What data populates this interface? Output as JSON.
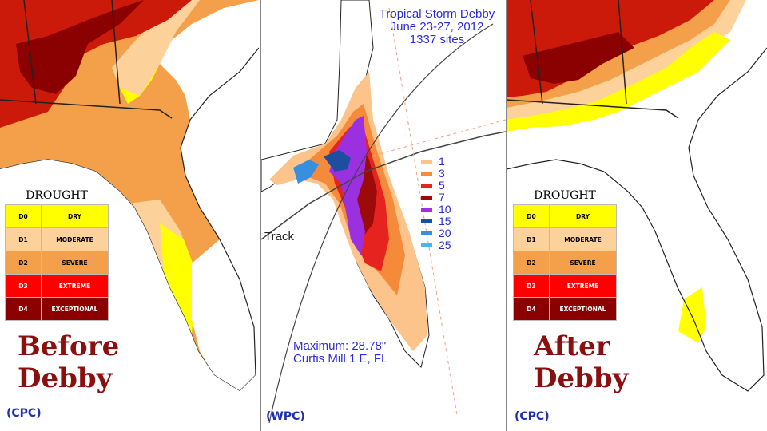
{
  "legend": {
    "title": "DROUGHT",
    "rows": [
      {
        "code": "D0",
        "label": "DRY",
        "color": "#ffff00"
      },
      {
        "code": "D1",
        "label": "MODERATE",
        "color": "#fcd19a"
      },
      {
        "code": "D2",
        "label": "SEVERE",
        "color": "#f4a04a"
      },
      {
        "code": "D3",
        "label": "EXTREME",
        "color": "#ff0000"
      },
      {
        "code": "D4",
        "label": "EXCEPTIONAL",
        "color": "#8b0000"
      }
    ]
  },
  "left_panel": {
    "label_line1": "Before",
    "label_line2": "Debby",
    "source": "(CPC)"
  },
  "center_panel": {
    "title_line1": "Tropical Storm Debby",
    "title_line2": "June 23-27, 2012",
    "title_line3": "1337 sites",
    "track_label": "Track",
    "max_line1": "Maximum:  28.78\"",
    "max_line2": "Curtis Mill 1 E, FL",
    "source": "(WPC)",
    "rain_scale": [
      {
        "value": "1",
        "color": "#fcc48a"
      },
      {
        "value": "3",
        "color": "#f58a3a"
      },
      {
        "value": "5",
        "color": "#e6231e"
      },
      {
        "value": "7",
        "color": "#9c0a0a"
      },
      {
        "value": "10",
        "color": "#9b30e0"
      },
      {
        "value": "15",
        "color": "#1d4ea0"
      },
      {
        "value": "20",
        "color": "#3a8ee0"
      },
      {
        "value": "25",
        "color": "#4ab4f0"
      }
    ]
  },
  "right_panel": {
    "label_line1": "After",
    "label_line2": "Debby",
    "source": "(CPC)"
  }
}
